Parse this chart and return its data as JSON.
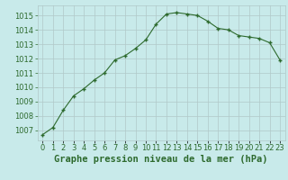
{
  "x": [
    0,
    1,
    2,
    3,
    4,
    5,
    6,
    7,
    8,
    9,
    10,
    11,
    12,
    13,
    14,
    15,
    16,
    17,
    18,
    19,
    20,
    21,
    22,
    23
  ],
  "y": [
    1006.7,
    1007.2,
    1008.4,
    1009.4,
    1009.9,
    1010.5,
    1011.0,
    1011.9,
    1012.2,
    1012.7,
    1013.3,
    1014.4,
    1015.1,
    1015.2,
    1015.1,
    1015.0,
    1014.6,
    1014.1,
    1014.0,
    1013.6,
    1013.5,
    1013.4,
    1013.1,
    1011.9
  ],
  "line_color": "#2d6a2d",
  "marker": "+",
  "bg_color": "#c8eaea",
  "grid_color": "#b0c8c8",
  "xlabel": "Graphe pression niveau de la mer (hPa)",
  "xlabel_color": "#2d6a2d",
  "ylabel_ticks": [
    1007,
    1008,
    1009,
    1010,
    1011,
    1012,
    1013,
    1014,
    1015
  ],
  "xlim": [
    -0.5,
    23.5
  ],
  "ylim": [
    1006.3,
    1015.7
  ],
  "xtick_labels": [
    "0",
    "1",
    "2",
    "3",
    "4",
    "5",
    "6",
    "7",
    "8",
    "9",
    "10",
    "11",
    "12",
    "13",
    "14",
    "15",
    "16",
    "17",
    "18",
    "19",
    "20",
    "21",
    "22",
    "23"
  ],
  "tick_color": "#2d6a2d",
  "tick_fontsize": 6,
  "xlabel_fontsize": 7.5
}
